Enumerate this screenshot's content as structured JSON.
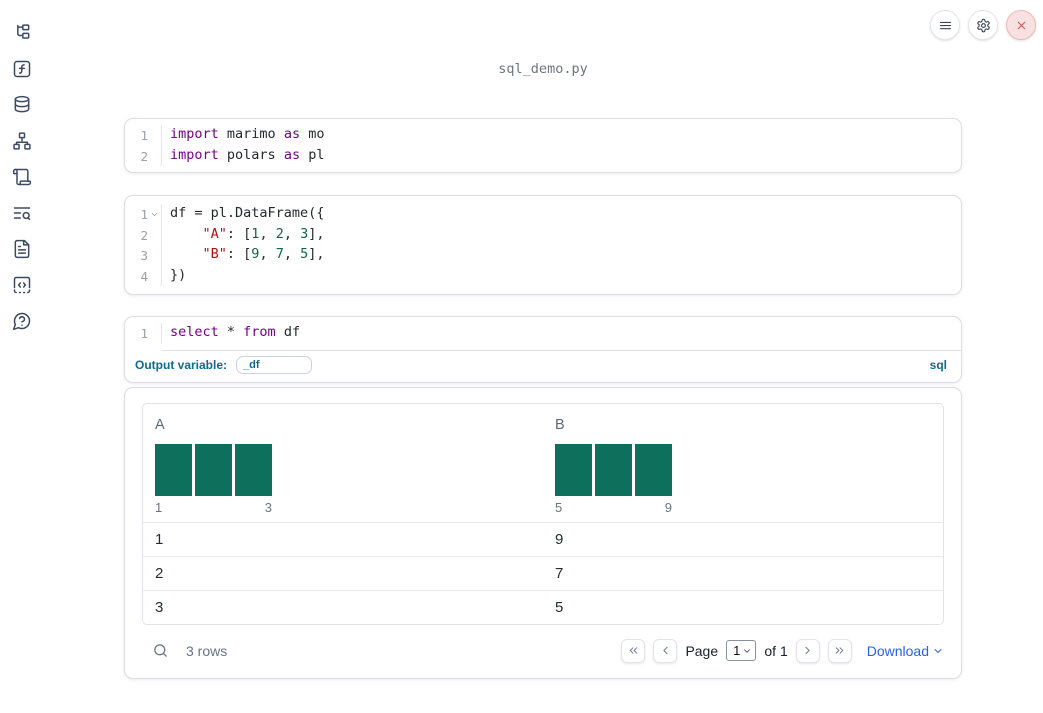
{
  "colors": {
    "accent": "#0e6b8c",
    "keyword": "#770088",
    "string": "#aa1111",
    "number": "#116644",
    "bar": "#0e6f5c",
    "link": "#2563eb",
    "danger": "#d05050",
    "icon": "#3d4a63",
    "muted": "#64748b"
  },
  "sidebar": {
    "icons": [
      {
        "name": "file-tree"
      },
      {
        "name": "function-square"
      },
      {
        "name": "database"
      },
      {
        "name": "dependency-graph"
      },
      {
        "name": "scroll"
      },
      {
        "name": "text-search"
      },
      {
        "name": "file-text"
      },
      {
        "name": "snippets"
      },
      {
        "name": "help"
      }
    ]
  },
  "topbar": {
    "buttons": [
      {
        "name": "menu-button",
        "icon": "hamburger",
        "variant": ""
      },
      {
        "name": "settings-button",
        "icon": "gear",
        "variant": ""
      },
      {
        "name": "shutdown-button",
        "icon": "close",
        "variant": "danger"
      }
    ]
  },
  "header": {
    "filename": "sql_demo.py"
  },
  "cells": [
    {
      "id": "imports",
      "lines": [
        {
          "num": "1",
          "fold": false,
          "tokens": [
            {
              "t": "import",
              "c": "kw"
            },
            {
              "t": " marimo ",
              "c": "pl"
            },
            {
              "t": "as",
              "c": "kw"
            },
            {
              "t": " mo",
              "c": "pl"
            }
          ]
        },
        {
          "num": "2",
          "fold": false,
          "tokens": [
            {
              "t": "import",
              "c": "kw"
            },
            {
              "t": " polars ",
              "c": "pl"
            },
            {
              "t": "as",
              "c": "kw"
            },
            {
              "t": " pl",
              "c": "pl"
            }
          ]
        }
      ]
    },
    {
      "id": "dataframe",
      "lines": [
        {
          "num": "1",
          "fold": true,
          "tokens": [
            {
              "t": "df = pl.DataFrame({",
              "c": "pl"
            }
          ]
        },
        {
          "num": "2",
          "fold": false,
          "tokens": [
            {
              "t": "    ",
              "c": "pl"
            },
            {
              "t": "\"A\"",
              "c": "str"
            },
            {
              "t": ": [",
              "c": "pl"
            },
            {
              "t": "1",
              "c": "num"
            },
            {
              "t": ", ",
              "c": "pl"
            },
            {
              "t": "2",
              "c": "num"
            },
            {
              "t": ", ",
              "c": "pl"
            },
            {
              "t": "3",
              "c": "num"
            },
            {
              "t": "],",
              "c": "pl"
            }
          ]
        },
        {
          "num": "3",
          "fold": false,
          "tokens": [
            {
              "t": "    ",
              "c": "pl"
            },
            {
              "t": "\"B\"",
              "c": "str"
            },
            {
              "t": ": [",
              "c": "pl"
            },
            {
              "t": "9",
              "c": "num"
            },
            {
              "t": ", ",
              "c": "pl"
            },
            {
              "t": "7",
              "c": "num"
            },
            {
              "t": ", ",
              "c": "pl"
            },
            {
              "t": "5",
              "c": "num"
            },
            {
              "t": "],",
              "c": "pl"
            }
          ]
        },
        {
          "num": "4",
          "fold": false,
          "tokens": [
            {
              "t": "})",
              "c": "pl"
            }
          ]
        }
      ]
    },
    {
      "id": "sql",
      "lines": [
        {
          "num": "1",
          "fold": false,
          "tokens": [
            {
              "t": "select",
              "c": "kw"
            },
            {
              "t": " * ",
              "c": "pl"
            },
            {
              "t": "from",
              "c": "kw"
            },
            {
              "t": " df",
              "c": "pl"
            }
          ]
        }
      ],
      "footer": {
        "label": "Output variable:",
        "value": "_df",
        "language": "sql"
      }
    }
  ],
  "table": {
    "columns": [
      {
        "name": "A",
        "min": "1",
        "max": "3",
        "bars": [
          1,
          1,
          1
        ]
      },
      {
        "name": "B",
        "min": "5",
        "max": "9",
        "bars": [
          1,
          1,
          1
        ]
      }
    ],
    "rows": [
      [
        "1",
        "9"
      ],
      [
        "2",
        "7"
      ],
      [
        "3",
        "5"
      ]
    ],
    "footer": {
      "row_count": "3 rows",
      "page_label": "Page",
      "page_value": "1",
      "page_total": "of 1",
      "download_label": "Download"
    }
  }
}
